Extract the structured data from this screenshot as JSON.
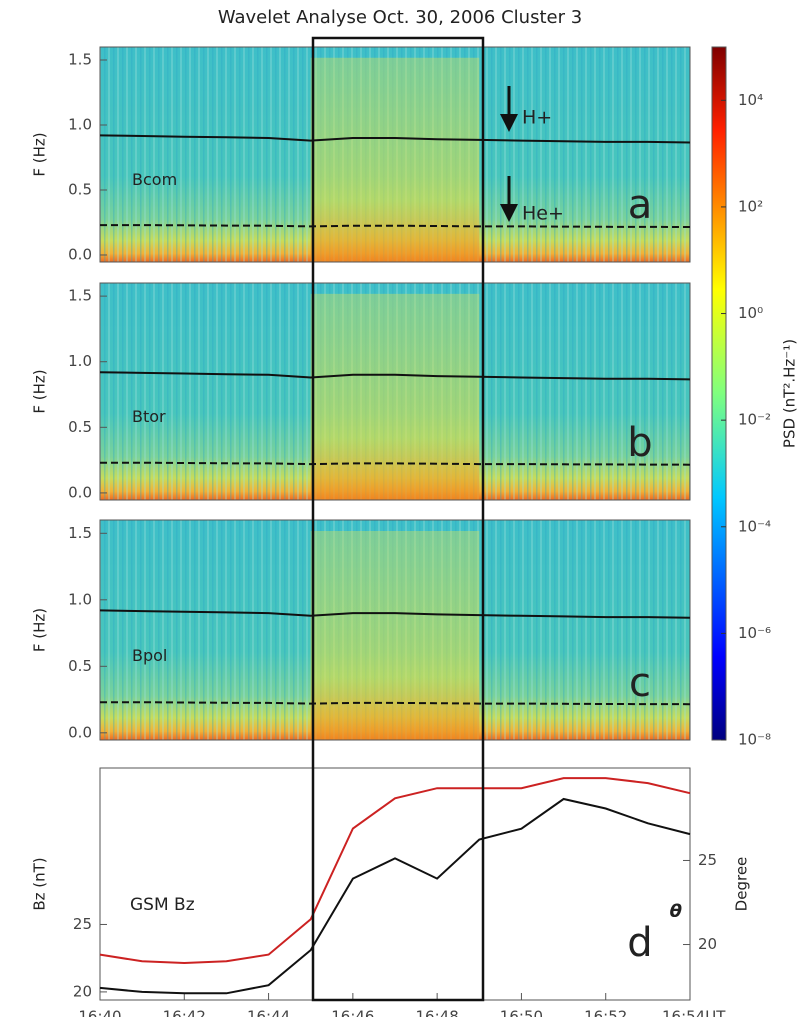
{
  "title": "Wavelet Analyse   Oct. 30, 2006   Cluster 3",
  "colorbar": {
    "label": "PSD (nT².Hz⁻¹)",
    "log": true,
    "clim": [
      1e-08,
      100000
    ],
    "ticks": [
      {
        "value": 10000,
        "label": "10⁴"
      },
      {
        "value": 100,
        "label": "10²"
      },
      {
        "value": 1,
        "label": "10⁰"
      },
      {
        "value": 0.01,
        "label": "10⁻²"
      },
      {
        "value": 0.0001,
        "label": "10⁻⁴"
      },
      {
        "value": 1e-06,
        "label": "10⁻⁶"
      },
      {
        "value": 1e-08,
        "label": "10⁻⁸"
      }
    ]
  },
  "chart_data": [
    {
      "type": "line",
      "ylabel": "F (Hz)",
      "label": "Bcom",
      "panel": "a",
      "annotations": [
        "H+",
        "He+"
      ],
      "xlim": [
        "16:40",
        "16:54"
      ],
      "ylim": [
        -0.054,
        1.6
      ],
      "yticks": [
        {
          "value": 0,
          "label": "0.0"
        },
        0.5,
        {
          "value": 1,
          "label": "1.0"
        },
        1.5
      ],
      "x": [
        "16:40",
        "16:41",
        "16:42",
        "16:43",
        "16:44",
        "16:45",
        "16:46",
        "16:47",
        "16:48",
        "16:49",
        "16:50",
        "16:51",
        "16:52",
        "16:53",
        "16:54"
      ],
      "series": [
        {
          "color": "#111111",
          "values": [
            0.92,
            0.915,
            0.91,
            0.905,
            0.9,
            0.88,
            0.9,
            0.9,
            0.89,
            0.885,
            0.88,
            0.875,
            0.87,
            0.87,
            0.865
          ]
        },
        {
          "color": "#111111",
          "dashed": true,
          "values": [
            0.23,
            0.23,
            0.228,
            0.226,
            0.225,
            0.22,
            0.225,
            0.225,
            0.223,
            0.22,
            0.22,
            0.218,
            0.217,
            0.216,
            0.215
          ]
        }
      ]
    },
    {
      "type": "line",
      "ylabel": "F (Hz)",
      "label": "Btor",
      "panel": "b",
      "xlim": [
        "16:40",
        "16:54"
      ],
      "ylim": [
        -0.054,
        1.6
      ],
      "yticks": [
        {
          "value": 0,
          "label": "0.0"
        },
        0.5,
        {
          "value": 1,
          "label": "1.0"
        },
        1.5
      ],
      "x": [
        "16:40",
        "16:41",
        "16:42",
        "16:43",
        "16:44",
        "16:45",
        "16:46",
        "16:47",
        "16:48",
        "16:49",
        "16:50",
        "16:51",
        "16:52",
        "16:53",
        "16:54"
      ],
      "series": [
        {
          "color": "#111111",
          "values": [
            0.92,
            0.915,
            0.91,
            0.905,
            0.9,
            0.88,
            0.9,
            0.9,
            0.89,
            0.885,
            0.88,
            0.875,
            0.87,
            0.87,
            0.865
          ]
        },
        {
          "color": "#111111",
          "dashed": true,
          "values": [
            0.23,
            0.23,
            0.228,
            0.226,
            0.225,
            0.22,
            0.225,
            0.225,
            0.223,
            0.22,
            0.22,
            0.218,
            0.217,
            0.216,
            0.215
          ]
        }
      ]
    },
    {
      "type": "line",
      "ylabel": "F (Hz)",
      "label": "Bpol",
      "panel": "c",
      "xlim": [
        "16:40",
        "16:54"
      ],
      "ylim": [
        -0.054,
        1.6
      ],
      "yticks": [
        {
          "value": 0,
          "label": "0.0"
        },
        0.5,
        {
          "value": 1,
          "label": "1.0"
        },
        1.5
      ],
      "x": [
        "16:40",
        "16:41",
        "16:42",
        "16:43",
        "16:44",
        "16:45",
        "16:46",
        "16:47",
        "16:48",
        "16:49",
        "16:50",
        "16:51",
        "16:52",
        "16:53",
        "16:54"
      ],
      "series": [
        {
          "color": "#111111",
          "values": [
            0.92,
            0.915,
            0.91,
            0.905,
            0.9,
            0.88,
            0.9,
            0.9,
            0.89,
            0.885,
            0.88,
            0.875,
            0.87,
            0.87,
            0.865
          ]
        },
        {
          "color": "#111111",
          "dashed": true,
          "values": [
            0.23,
            0.23,
            0.228,
            0.226,
            0.225,
            0.22,
            0.225,
            0.225,
            0.223,
            0.22,
            0.22,
            0.218,
            0.217,
            0.216,
            0.215
          ]
        }
      ]
    },
    {
      "type": "line",
      "ylabel": "Bz (nT)",
      "y2label": "Degree",
      "panel": "d",
      "xlim": [
        "16:40",
        "16:54"
      ],
      "ylim": [
        19.4,
        36.6
      ],
      "y2lim": [
        16.7,
        30.5
      ],
      "xticks": [
        "16:40",
        "16:42",
        "16:44",
        "16:46",
        "16:48",
        "16:50",
        "16:52",
        {
          "value": "16:54",
          "label": "16:54UT"
        }
      ],
      "yticks": [
        20,
        25
      ],
      "y2ticks": [
        20,
        25
      ],
      "x": [
        "16:40",
        "16:41",
        "16:42",
        "16:43",
        "16:44",
        "16:45",
        "16:46",
        "16:47",
        "16:48",
        "16:49",
        "16:50",
        "16:51",
        "16:52",
        "16:53",
        "16:54"
      ],
      "series": [
        {
          "name": "GSM Bz",
          "color": "#111111",
          "values": [
            20.3,
            20.0,
            19.9,
            19.9,
            20.5,
            23.1,
            28.4,
            29.9,
            28.4,
            31.3,
            32.1,
            34.3,
            33.6,
            32.5,
            31.7
          ]
        },
        {
          "name": "θ",
          "color": "#cc2222",
          "axis": "y2",
          "values": [
            19.4,
            19.0,
            18.9,
            19.0,
            19.4,
            21.5,
            26.9,
            28.7,
            29.3,
            29.3,
            29.3,
            29.9,
            29.9,
            29.6,
            29.0
          ]
        }
      ]
    }
  ]
}
